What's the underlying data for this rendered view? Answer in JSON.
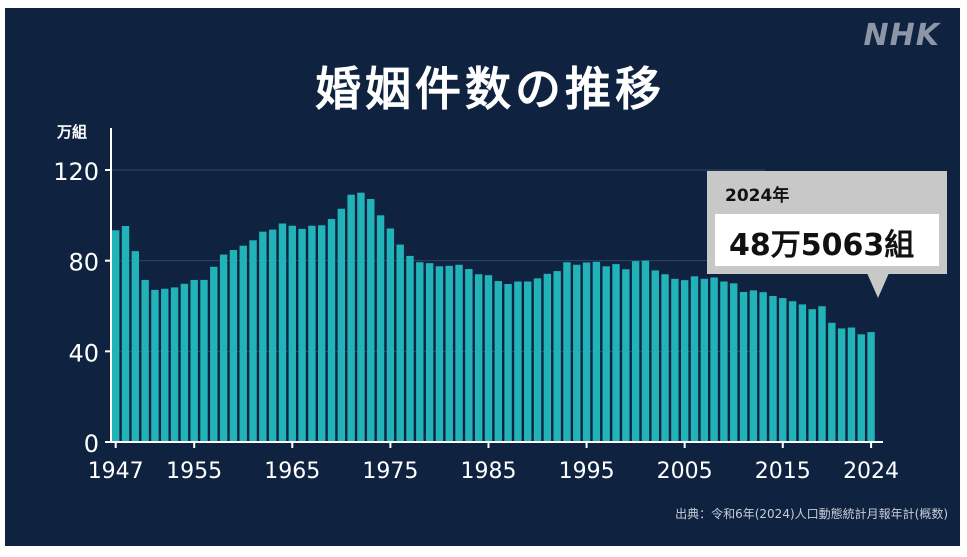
{
  "header": {
    "title": "婚姻件数の推移",
    "logo": "NHK"
  },
  "source_note": "出典：令和6年(2024)人口動態統計月報年計(概数)",
  "callout": {
    "year": "2024年",
    "value": "48万5063組"
  },
  "colors": {
    "background": "#0f2341",
    "bar": "#22b3b9",
    "text": "#ffffff",
    "callout_bg": "#c8c8c8"
  },
  "chart_data": {
    "type": "bar",
    "title": "婚姻件数の推移",
    "ylabel": "万組",
    "xlabel": "",
    "ylim": [
      0,
      120
    ],
    "yticks": [
      "0",
      "40",
      "80",
      "120"
    ],
    "xtick_labels": [
      "1947",
      "1955",
      "1965",
      "1975",
      "1985",
      "1995",
      "2005",
      "2015",
      "2024"
    ],
    "grid": "horizontal",
    "categories": [
      1947,
      1948,
      1949,
      1950,
      1951,
      1952,
      1953,
      1954,
      1955,
      1956,
      1957,
      1958,
      1959,
      1960,
      1961,
      1962,
      1963,
      1964,
      1965,
      1966,
      1967,
      1968,
      1969,
      1970,
      1971,
      1972,
      1973,
      1974,
      1975,
      1976,
      1977,
      1978,
      1979,
      1980,
      1981,
      1982,
      1983,
      1984,
      1985,
      1986,
      1987,
      1988,
      1989,
      1990,
      1991,
      1992,
      1993,
      1994,
      1995,
      1996,
      1997,
      1998,
      1999,
      2000,
      2001,
      2002,
      2003,
      2004,
      2005,
      2006,
      2007,
      2008,
      2009,
      2010,
      2011,
      2012,
      2013,
      2014,
      2015,
      2016,
      2017,
      2018,
      2019,
      2020,
      2021,
      2022,
      2023,
      2024
    ],
    "values": [
      93.4,
      95.3,
      84.2,
      71.5,
      67.1,
      67.6,
      68.2,
      69.8,
      71.5,
      71.5,
      77.3,
      82.7,
      84.7,
      86.6,
      89.0,
      92.8,
      93.7,
      96.4,
      95.4,
      94.0,
      95.4,
      95.6,
      98.4,
      102.9,
      109.1,
      110.0,
      107.2,
      100.0,
      94.2,
      87.1,
      82.1,
      79.3,
      78.9,
      77.5,
      77.7,
      78.2,
      76.3,
      74.0,
      73.6,
      71.0,
      69.7,
      70.8,
      70.8,
      72.2,
      74.2,
      75.4,
      79.3,
      78.2,
      79.2,
      79.5,
      77.5,
      78.5,
      76.2,
      79.8,
      80.0,
      75.7,
      74.0,
      72.0,
      71.4,
      73.1,
      72.0,
      72.6,
      70.8,
      70.0,
      66.2,
      66.9,
      66.1,
      64.4,
      63.5,
      62.1,
      60.7,
      58.6,
      59.9,
      52.6,
      50.1,
      50.5,
      47.5,
      48.5
    ]
  }
}
